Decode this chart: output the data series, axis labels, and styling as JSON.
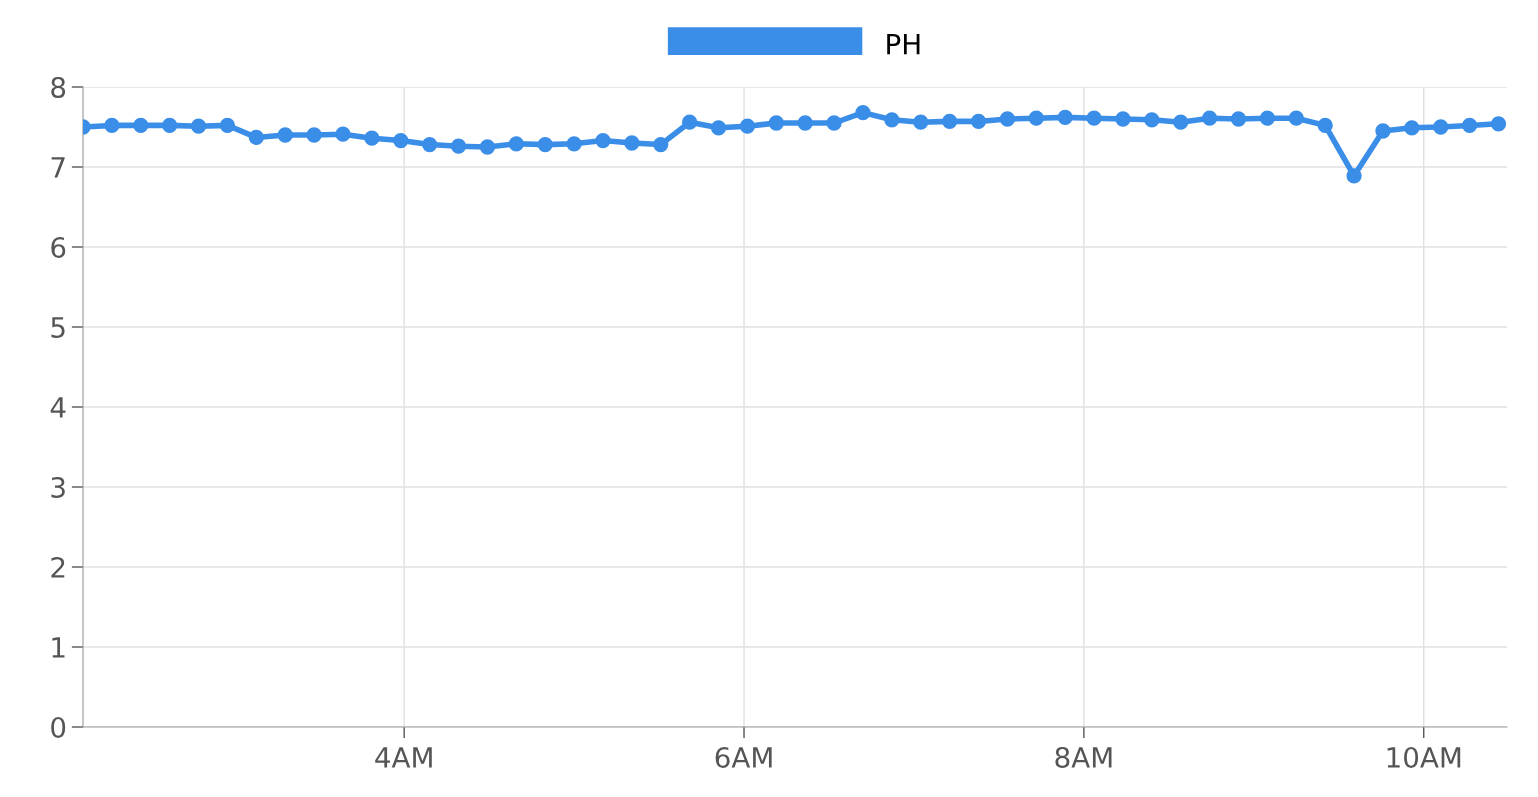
{
  "chart_data": {
    "type": "line",
    "x": [
      2.11,
      2.28,
      2.45,
      2.62,
      2.79,
      2.96,
      3.13,
      3.3,
      3.47,
      3.64,
      3.81,
      3.98,
      4.15,
      4.32,
      4.49,
      4.66,
      4.83,
      5.0,
      5.17,
      5.34,
      5.51,
      5.68,
      5.85,
      6.02,
      6.19,
      6.36,
      6.53,
      6.7,
      6.87,
      7.04,
      7.21,
      7.38,
      7.55,
      7.72,
      7.89,
      8.06,
      8.23,
      8.4,
      8.57,
      8.74,
      8.91,
      9.08,
      9.25,
      9.42,
      9.59,
      9.76,
      9.93,
      10.1,
      10.27,
      10.44
    ],
    "series": [
      {
        "name": "PH",
        "color": "#3a8ee8",
        "values": [
          7.5,
          7.52,
          7.52,
          7.52,
          7.51,
          7.52,
          7.37,
          7.4,
          7.4,
          7.41,
          7.36,
          7.33,
          7.28,
          7.26,
          7.25,
          7.29,
          7.28,
          7.29,
          7.33,
          7.3,
          7.28,
          7.56,
          7.49,
          7.51,
          7.55,
          7.55,
          7.55,
          7.68,
          7.59,
          7.56,
          7.57,
          7.57,
          7.6,
          7.61,
          7.62,
          7.61,
          7.6,
          7.59,
          7.56,
          7.61,
          7.6,
          7.61,
          7.61,
          7.52,
          6.89,
          7.45,
          7.49,
          7.5,
          7.52,
          7.54
        ]
      }
    ],
    "xlim": [
      2.11,
      10.49
    ],
    "xticks": [
      {
        "value": 4,
        "label": "4AM"
      },
      {
        "value": 6,
        "label": "6AM"
      },
      {
        "value": 8,
        "label": "8AM"
      },
      {
        "value": 10,
        "label": "10AM"
      }
    ],
    "ylim": [
      0,
      8
    ],
    "yticks": [
      0,
      1,
      2,
      3,
      4,
      5,
      6,
      7,
      8
    ],
    "grid": true,
    "legend": "top",
    "marker": "circle",
    "line_style": "solid"
  }
}
